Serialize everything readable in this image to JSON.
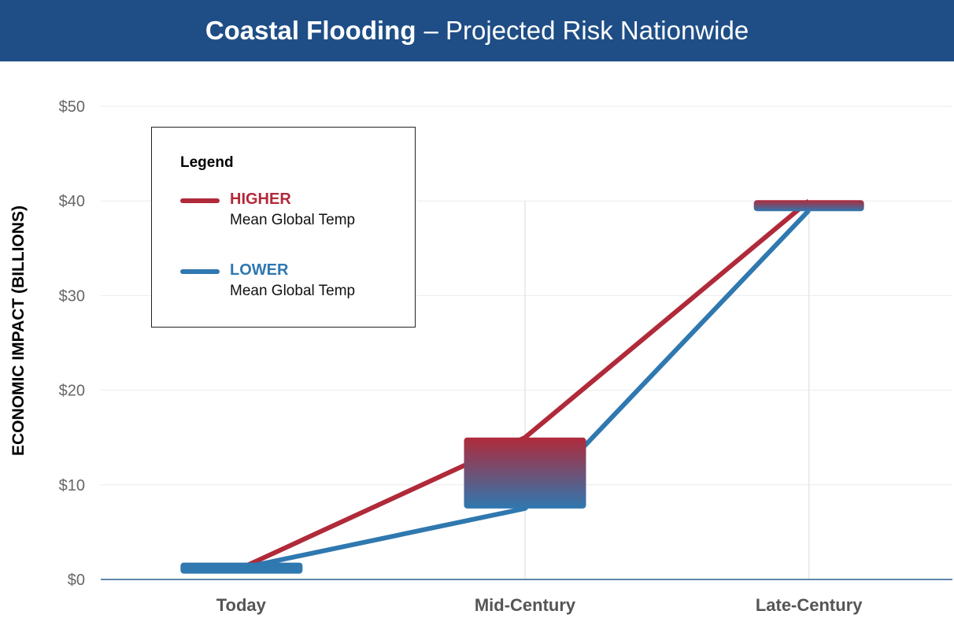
{
  "title": {
    "bold": "Coastal Flooding",
    "rest": "– Projected Risk Nationwide"
  },
  "colors": {
    "header": "#1f4e86",
    "higher": "#b02a3a",
    "lower": "#2f78b0"
  },
  "legend": {
    "title": "Legend",
    "items": [
      {
        "name": "HIGHER",
        "sub": "Mean Global Temp"
      },
      {
        "name": "LOWER",
        "sub": "Mean Global Temp"
      }
    ]
  },
  "chart_data": {
    "type": "line",
    "title": "Coastal Flooding – Projected Risk Nationwide",
    "ylabel": "ECONOMIC IMPACT (BILLIONS)",
    "xlabel": "",
    "categories": [
      "Today",
      "Mid-Century",
      "Late-Century"
    ],
    "ylim": [
      0,
      50
    ],
    "yticks": [
      "$0",
      "$10",
      "$20",
      "$30",
      "$40",
      "$50"
    ],
    "grid": true,
    "legend_placement": "top-left",
    "series": [
      {
        "name": "HIGHER Mean Global Temp",
        "values": [
          1.2,
          15,
          40
        ]
      },
      {
        "name": "LOWER Mean Global Temp",
        "values": [
          1.2,
          7.5,
          39
        ]
      }
    ],
    "ranges": [
      {
        "category": "Today",
        "low": 1.2,
        "high": 1.2
      },
      {
        "category": "Mid-Century",
        "low": 7.5,
        "high": 15
      },
      {
        "category": "Late-Century",
        "low": 39,
        "high": 40
      }
    ]
  }
}
